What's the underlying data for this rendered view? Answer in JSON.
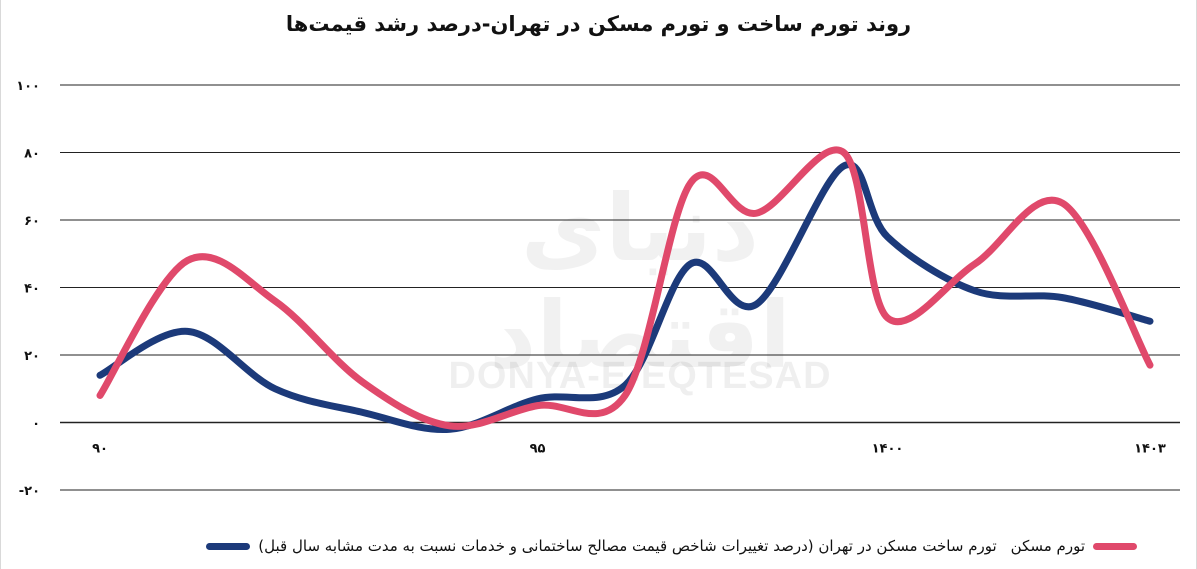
{
  "chart_data": {
    "type": "line",
    "title": "روند تورم ساخت و تورم مسکن در تهران-درصد رشد قیمت‌ها",
    "xlabel": "",
    "ylabel": "",
    "x_ticks": [
      "۹۰",
      "۹۵",
      "۱۴۰۰",
      "۱۴۰۳"
    ],
    "x_tick_values": [
      90,
      95,
      1400,
      1403
    ],
    "y_ticks": [
      "-۲۰",
      "۰",
      "۲۰",
      "۴۰",
      "۶۰",
      "۸۰",
      "۱۰۰"
    ],
    "ylim": [
      -20,
      100
    ],
    "grid": "horizontal",
    "legend_position": "bottom",
    "series": [
      {
        "name": "تورم ساخت مسکن در تهران (درصد تغییرات شاخص قیمت مصالح ساختمانی و خدمات نسبت به مدت مشابه سال قبل)",
        "color": "#1c3a7a",
        "points": [
          [
            90,
            14
          ],
          [
            91,
            27
          ],
          [
            92,
            10
          ],
          [
            93,
            3
          ],
          [
            94,
            -2
          ],
          [
            95,
            7
          ],
          [
            96,
            11
          ],
          [
            96.75,
            47
          ],
          [
            97.5,
            35
          ],
          [
            98.5,
            76
          ],
          [
            1400,
            55
          ],
          [
            1401,
            39
          ],
          [
            1402,
            37
          ],
          [
            1403,
            30
          ]
        ]
      },
      {
        "name": "تورم مسکن",
        "color": "#e0496b",
        "points": [
          [
            90,
            8
          ],
          [
            91,
            48
          ],
          [
            92,
            36
          ],
          [
            93,
            12
          ],
          [
            94,
            -1
          ],
          [
            95,
            5
          ],
          [
            96,
            8
          ],
          [
            96.75,
            71
          ],
          [
            97.5,
            62
          ],
          [
            98.5,
            80
          ],
          [
            1400,
            31
          ],
          [
            1401,
            47
          ],
          [
            1402,
            65
          ],
          [
            1403,
            17
          ]
        ]
      }
    ]
  },
  "watermark": {
    "text_latin": "DONYA-E-EQTESAD",
    "text_persian": "دنیای اقتصاد"
  }
}
